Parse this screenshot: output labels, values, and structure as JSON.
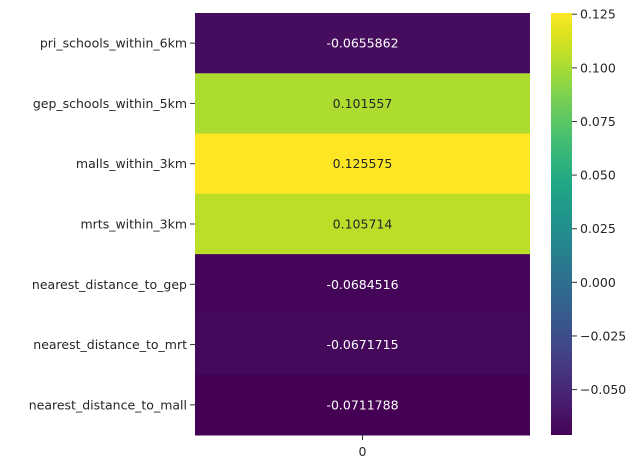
{
  "chart_data": {
    "type": "heatmap",
    "colormap": "viridis",
    "rows": [
      "pri_schools_within_6km",
      "gep_schools_within_5km",
      "malls_within_3km",
      "mrts_within_3km",
      "nearest_distance_to_gep",
      "nearest_distance_to_mrt",
      "nearest_distance_to_mall"
    ],
    "columns": [
      "0"
    ],
    "values": [
      -0.0655862,
      0.101557,
      0.125575,
      0.105714,
      -0.0684516,
      -0.0671715,
      -0.0711788
    ],
    "value_labels": [
      "-0.0655862",
      "0.101557",
      "0.125575",
      "0.105714",
      "-0.0684516",
      "-0.0671715",
      "-0.0711788"
    ],
    "colorbar": {
      "vmin": -0.0711788,
      "vmax": 0.125575,
      "ticks": [
        0.125,
        0.1,
        0.075,
        0.05,
        0.025,
        0.0,
        -0.025,
        -0.05
      ],
      "tick_labels": [
        "0.125",
        "0.100",
        "0.075",
        "0.050",
        "0.025",
        "0.000",
        "−0.025",
        "−0.050"
      ]
    },
    "title": "",
    "xlabel": "",
    "ylabel": ""
  }
}
